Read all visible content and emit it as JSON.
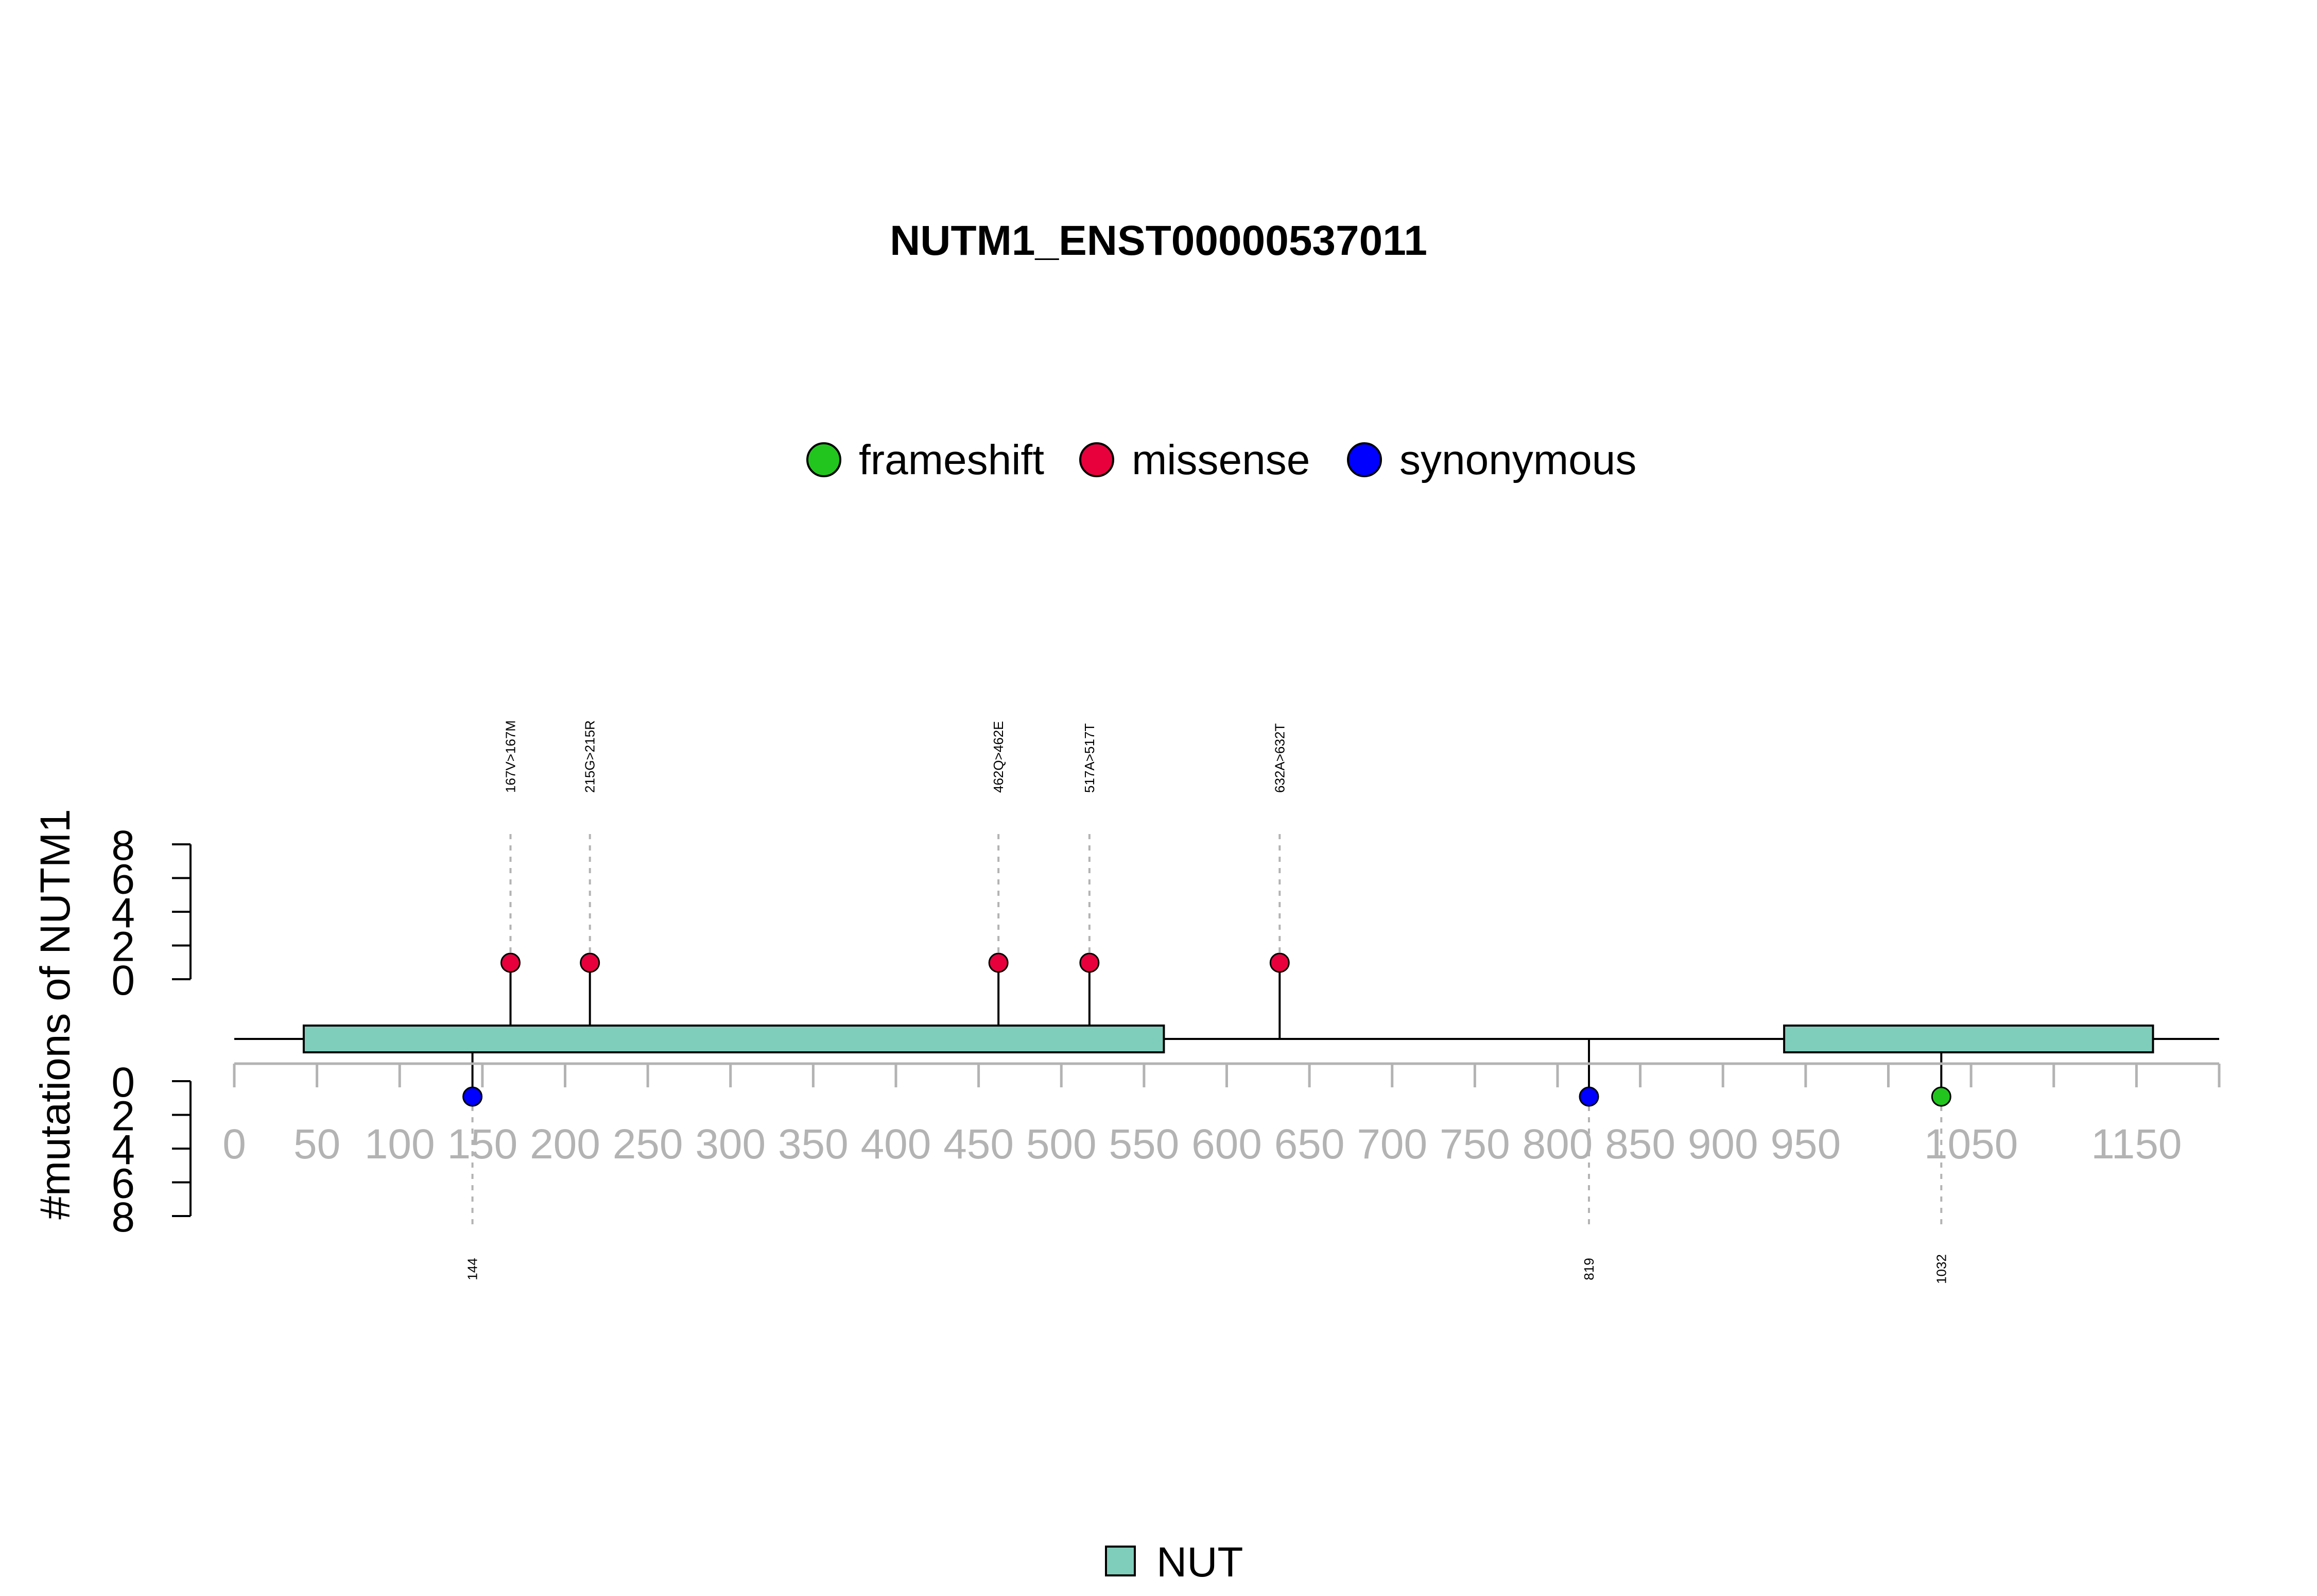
{
  "chart_data": {
    "type": "lollipop",
    "title": "NUTM1_ENST00000537011",
    "ylabel": "#mutations of NUTM1",
    "xlim": [
      0,
      1200
    ],
    "x_ticks": [
      "0",
      "50",
      "100",
      "150",
      "200",
      "250",
      "300",
      "350",
      "400",
      "450",
      "500",
      "550",
      "600",
      "650",
      "700",
      "750",
      "800",
      "850",
      "900",
      "950",
      "1050",
      "1150"
    ],
    "y_ticks_top": [
      "0",
      "2",
      "4",
      "6",
      "8"
    ],
    "y_ticks_bottom": [
      "0",
      "2",
      "4",
      "6",
      "8"
    ],
    "ylim": [
      0,
      8
    ],
    "legend_mutations": [
      {
        "name": "frameshift",
        "color": "#22c51e"
      },
      {
        "name": "missense",
        "color": "#e8003d"
      },
      {
        "name": "synonymous",
        "color": "#0000ff"
      }
    ],
    "domains": [
      {
        "name": "NUT",
        "start": 42,
        "end": 562,
        "color": "#7fcdbb"
      },
      {
        "name": "NUT",
        "start": 937,
        "end": 1160,
        "color": "#7fcdbb"
      }
    ],
    "legend_domains": [
      {
        "name": "NUT",
        "color": "#7fcdbb"
      }
    ],
    "mutations": [
      {
        "position": 167,
        "count": 1,
        "type": "missense",
        "label": "167V>167M",
        "side": "top"
      },
      {
        "position": 215,
        "count": 1,
        "type": "missense",
        "label": "215G>215R",
        "side": "top"
      },
      {
        "position": 462,
        "count": 1,
        "type": "missense",
        "label": "462Q>462E",
        "side": "top"
      },
      {
        "position": 517,
        "count": 1,
        "type": "missense",
        "label": "517A>517T",
        "side": "top"
      },
      {
        "position": 632,
        "count": 1,
        "type": "missense",
        "label": "632A>632T",
        "side": "top"
      },
      {
        "position": 144,
        "count": 1,
        "type": "synonymous",
        "label": "144",
        "side": "bottom"
      },
      {
        "position": 819,
        "count": 1,
        "type": "synonymous",
        "label": "819",
        "side": "bottom"
      },
      {
        "position": 1032,
        "count": 1,
        "type": "frameshift",
        "label": "1032",
        "side": "bottom"
      }
    ]
  }
}
